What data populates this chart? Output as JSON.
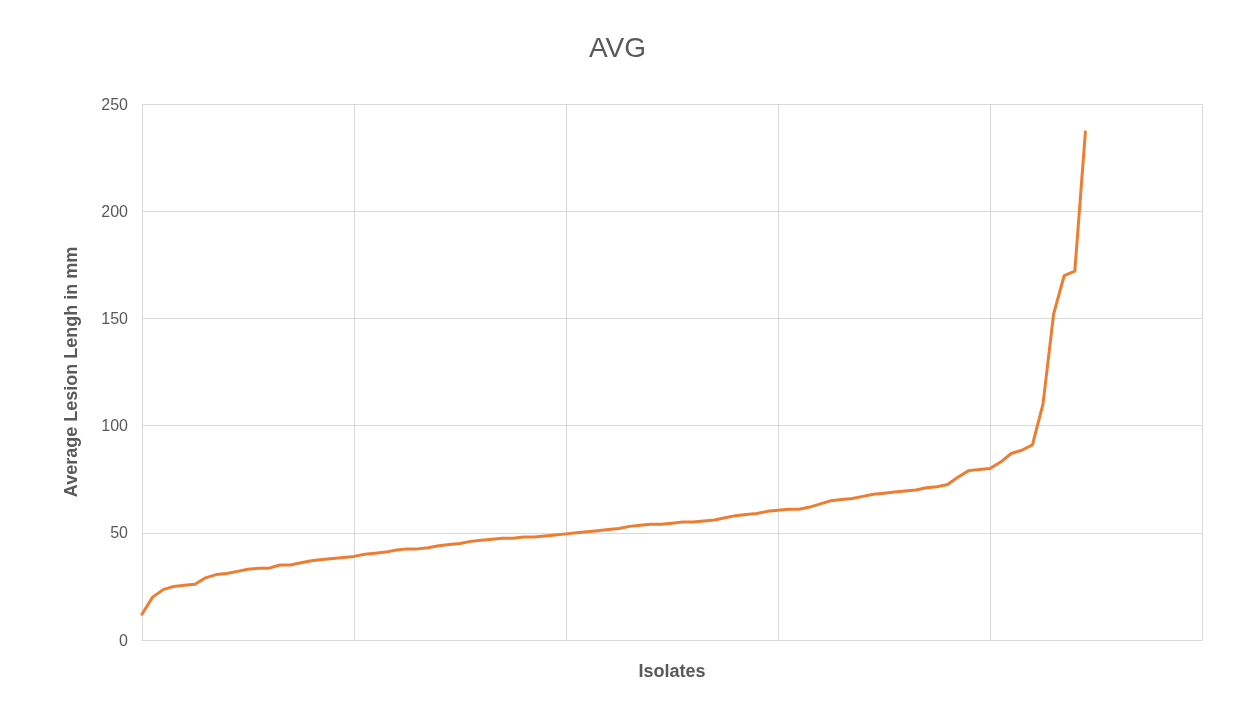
{
  "chart_data": {
    "type": "line",
    "title": "AVG",
    "xlabel": "Isolates",
    "ylabel": "Average Lesion Lengh in mm",
    "categories": [
      null,
      null,
      null,
      null,
      null,
      null,
      null,
      null,
      null,
      null,
      null,
      null,
      null,
      null,
      null,
      null,
      null,
      null,
      null,
      null,
      null,
      null,
      null,
      null,
      null,
      null,
      null,
      null,
      null,
      null,
      null,
      null,
      null,
      null,
      null,
      null,
      null,
      null,
      null,
      null,
      null,
      null,
      null,
      null,
      null,
      null,
      null,
      null,
      null,
      null,
      null,
      null,
      null,
      null,
      null,
      null,
      null,
      null,
      null,
      null,
      null,
      null,
      null,
      null,
      null,
      null,
      null,
      null,
      null,
      null,
      null,
      null,
      null,
      null,
      null,
      null,
      null,
      null,
      null,
      null,
      null,
      null,
      null,
      null,
      null,
      null,
      null,
      null,
      null,
      null,
      null,
      null,
      null,
      null,
      null,
      null,
      null,
      null,
      null,
      null,
      null
    ],
    "ylim": [
      0,
      250
    ],
    "yticks": [
      0,
      50,
      100,
      150,
      200,
      250
    ],
    "grid": true,
    "tick_labels": "y",
    "marker": "none",
    "line_style": "solid",
    "series": [
      {
        "color": "#ed7d31",
        "values": [
          12,
          20,
          23.5,
          25,
          25.5,
          26,
          29,
          30.5,
          31,
          32,
          33,
          33.5,
          33.5,
          35,
          35,
          36,
          37,
          37.5,
          38,
          38.5,
          39,
          40,
          40.5,
          41,
          42,
          42.5,
          42.5,
          43,
          44,
          44.5,
          45,
          46,
          46.5,
          47,
          47.5,
          47.5,
          48,
          48,
          48.5,
          49,
          49.5,
          50,
          50.5,
          51,
          51.5,
          52,
          53,
          53.5,
          54,
          54,
          54.5,
          55,
          55,
          55.5,
          56,
          57,
          58,
          58.5,
          59,
          60,
          60.5,
          61,
          61,
          62,
          63.5,
          65,
          65.5,
          66,
          67,
          68,
          68.5,
          69,
          69.5,
          70,
          71,
          71.5,
          72.5,
          76,
          79,
          79.5,
          80,
          83,
          87,
          88.5,
          91,
          110,
          152,
          170,
          172,
          237,
          null,
          null,
          null,
          null,
          null,
          null,
          null,
          null,
          null,
          null,
          null
        ]
      }
    ]
  }
}
